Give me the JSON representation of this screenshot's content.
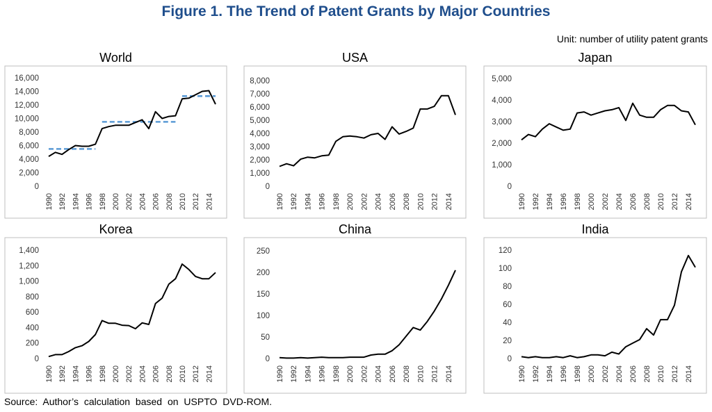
{
  "title": "Figure 1. The Trend of Patent Grants by Major Countries",
  "unit_note": "Unit: number of utility patent grants",
  "source_note": "Source: Author’s calculation based on USPTO DVD-ROM.",
  "colors": {
    "line": "#000000",
    "trend": "#5B9BD5",
    "title": "#1F4E8C",
    "frame": "#BFBFBF"
  },
  "chart_data": [
    {
      "type": "line",
      "title": "World",
      "x": [
        1990,
        1991,
        1992,
        1993,
        1994,
        1995,
        1996,
        1997,
        1998,
        1999,
        2000,
        2001,
        2002,
        2003,
        2004,
        2005,
        2006,
        2007,
        2008,
        2009,
        2010,
        2011,
        2012,
        2013,
        2014,
        2015
      ],
      "xtick_labels": [
        "1990",
        "1992",
        "1994",
        "1996",
        "1998",
        "2000",
        "2002",
        "2004",
        "2006",
        "2008",
        "2010",
        "2012",
        "2014"
      ],
      "ytick_labels": [
        "0",
        "2,000",
        "4,000",
        "6,000",
        "8,000",
        "10,000",
        "12,000",
        "14,000",
        "16,000"
      ],
      "ylim": [
        0,
        16000
      ],
      "values": [
        4400,
        5000,
        4700,
        5400,
        6000,
        5900,
        5900,
        6200,
        8500,
        8800,
        9000,
        9000,
        9000,
        9400,
        9800,
        8500,
        11000,
        10000,
        10300,
        10400,
        12900,
        13000,
        13500,
        14000,
        14100,
        12100
      ],
      "trend_lines": [
        {
          "x": [
            1990,
            1997
          ],
          "value": 5500
        },
        {
          "x": [
            1998,
            2009
          ],
          "value": 9500
        },
        {
          "x": [
            2010,
            2015
          ],
          "value": 13300
        }
      ]
    },
    {
      "type": "line",
      "title": "USA",
      "x": [
        1990,
        1991,
        1992,
        1993,
        1994,
        1995,
        1996,
        1997,
        1998,
        1999,
        2000,
        2001,
        2002,
        2003,
        2004,
        2005,
        2006,
        2007,
        2008,
        2009,
        2010,
        2011,
        2012,
        2013,
        2014,
        2015
      ],
      "xtick_labels": [
        "1990",
        "1992",
        "1994",
        "1996",
        "1998",
        "2000",
        "2002",
        "2004",
        "2006",
        "2008",
        "2010",
        "2012",
        "2014"
      ],
      "ytick_labels": [
        "0",
        "1,000",
        "2,000",
        "3,000",
        "4,000",
        "5,000",
        "6,000",
        "7,000",
        "8,000"
      ],
      "ylim": [
        0,
        8000
      ],
      "values": [
        1500,
        1700,
        1550,
        2050,
        2200,
        2150,
        2300,
        2350,
        3400,
        3750,
        3800,
        3750,
        3650,
        3900,
        4000,
        3550,
        4500,
        3950,
        4150,
        4400,
        5850,
        5850,
        6050,
        6850,
        6850,
        5400
      ]
    },
    {
      "type": "line",
      "title": "Japan",
      "x": [
        1990,
        1991,
        1992,
        1993,
        1994,
        1995,
        1996,
        1997,
        1998,
        1999,
        2000,
        2001,
        2002,
        2003,
        2004,
        2005,
        2006,
        2007,
        2008,
        2009,
        2010,
        2011,
        2012,
        2013,
        2014,
        2015
      ],
      "xtick_labels": [
        "1990",
        "1992",
        "1994",
        "1996",
        "1998",
        "2000",
        "2002",
        "2004",
        "2006",
        "2008",
        "2010",
        "2012",
        "2014"
      ],
      "ytick_labels": [
        "0",
        "1,000",
        "2,000",
        "3,000",
        "4,000",
        "5,000"
      ],
      "ylim": [
        0,
        5000
      ],
      "values": [
        2150,
        2400,
        2300,
        2650,
        2900,
        2750,
        2600,
        2650,
        3400,
        3450,
        3300,
        3400,
        3500,
        3550,
        3650,
        3050,
        3850,
        3300,
        3200,
        3200,
        3550,
        3750,
        3750,
        3500,
        3450,
        2850
      ]
    },
    {
      "type": "line",
      "title": "Korea",
      "x": [
        1990,
        1991,
        1992,
        1993,
        1994,
        1995,
        1996,
        1997,
        1998,
        1999,
        2000,
        2001,
        2002,
        2003,
        2004,
        2005,
        2006,
        2007,
        2008,
        2009,
        2010,
        2011,
        2012,
        2013,
        2014,
        2015
      ],
      "xtick_labels": [
        "1990",
        "1992",
        "1994",
        "1996",
        "1998",
        "2000",
        "2002",
        "2004",
        "2006",
        "2008",
        "2010",
        "2012",
        "2014"
      ],
      "ytick_labels": [
        "0",
        "200",
        "400",
        "600",
        "800",
        "1,000",
        "1,200",
        "1,400"
      ],
      "ylim": [
        0,
        1400
      ],
      "values": [
        25,
        50,
        50,
        90,
        140,
        165,
        220,
        310,
        490,
        455,
        455,
        430,
        425,
        385,
        460,
        440,
        710,
        780,
        960,
        1030,
        1220,
        1150,
        1060,
        1030,
        1030,
        1110
      ]
    },
    {
      "type": "line",
      "title": "China",
      "x": [
        1990,
        1991,
        1992,
        1993,
        1994,
        1995,
        1996,
        1997,
        1998,
        1999,
        2000,
        2001,
        2002,
        2003,
        2004,
        2005,
        2006,
        2007,
        2008,
        2009,
        2010,
        2011,
        2012,
        2013,
        2014,
        2015
      ],
      "xtick_labels": [
        "1990",
        "1992",
        "1994",
        "1996",
        "1998",
        "2000",
        "2002",
        "2004",
        "2006",
        "2008",
        "2010",
        "2012",
        "2014"
      ],
      "ytick_labels": [
        "0",
        "50",
        "100",
        "150",
        "200",
        "250"
      ],
      "ylim": [
        0,
        250
      ],
      "values": [
        2,
        1,
        1,
        2,
        1,
        2,
        3,
        2,
        2,
        2,
        3,
        3,
        3,
        8,
        10,
        10,
        18,
        32,
        52,
        72,
        66,
        86,
        110,
        138,
        170,
        205
      ]
    },
    {
      "type": "line",
      "title": "India",
      "x": [
        1990,
        1991,
        1992,
        1993,
        1994,
        1995,
        1996,
        1997,
        1998,
        1999,
        2000,
        2001,
        2002,
        2003,
        2004,
        2005,
        2006,
        2007,
        2008,
        2009,
        2010,
        2011,
        2012,
        2013,
        2014,
        2015
      ],
      "xtick_labels": [
        "1990",
        "1992",
        "1994",
        "1996",
        "1998",
        "2000",
        "2002",
        "2004",
        "2006",
        "2008",
        "2010",
        "2012",
        "2014"
      ],
      "ytick_labels": [
        "0",
        "20",
        "40",
        "60",
        "80",
        "100",
        "120"
      ],
      "ylim": [
        0,
        120
      ],
      "values": [
        2,
        1,
        2,
        1,
        1,
        2,
        1,
        3,
        1,
        2,
        4,
        4,
        3,
        7,
        5,
        13,
        17,
        21,
        33,
        26,
        43,
        43,
        59,
        96,
        114,
        101
      ]
    }
  ]
}
